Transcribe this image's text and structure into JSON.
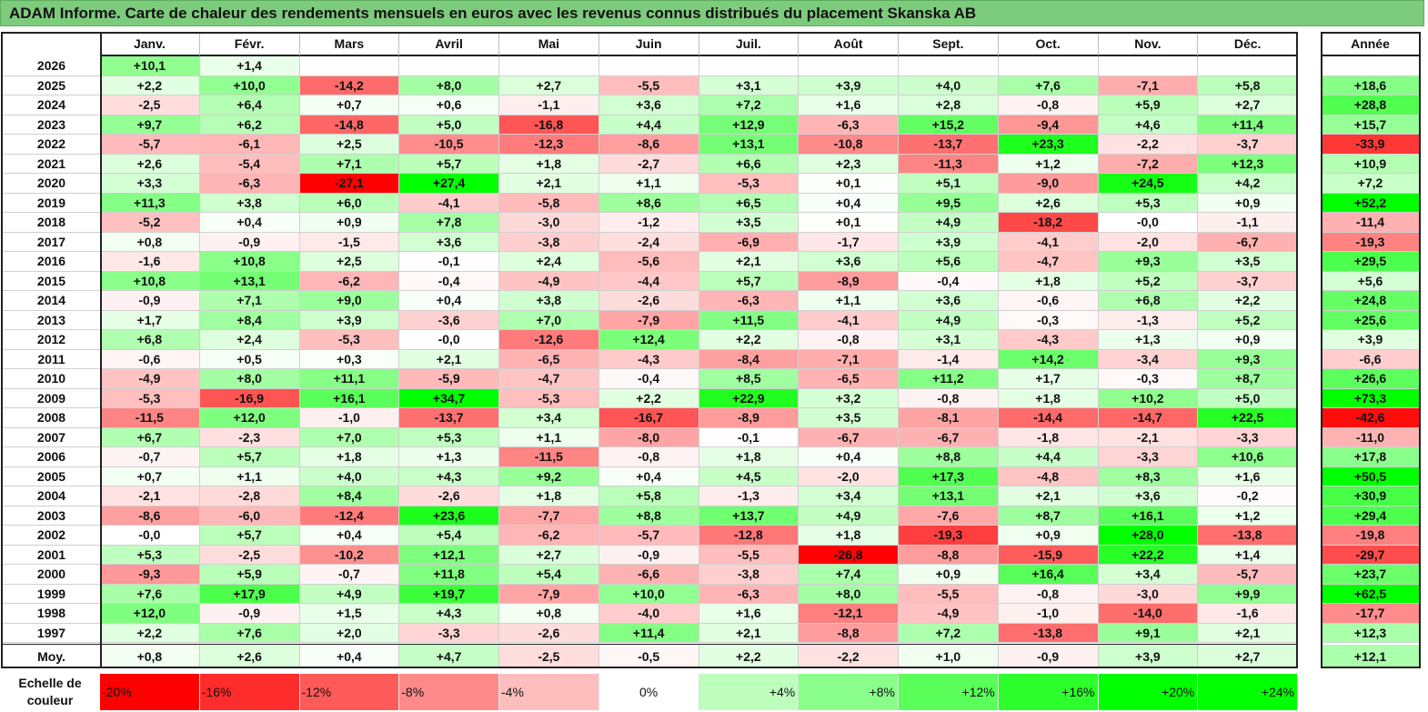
{
  "title": "ADAM Informe. Carte de chaleur des rendements mensuels en euros avec les revenus connus distribués du placement Skanska AB",
  "colors": {
    "title_bg": "#7dcb7d",
    "positive": "#00ff00",
    "negative": "#ff0000",
    "neutral": "#ffffff"
  },
  "chart_data": {
    "type": "heatmap",
    "columns": [
      "Janv.",
      "Févr.",
      "Mars",
      "Avril",
      "Mai",
      "Juin",
      "Juil.",
      "Août",
      "Sept.",
      "Oct.",
      "Nov.",
      "Déc."
    ],
    "year_header": "Année",
    "average_label": "Moy.",
    "scale_label": "Echelle de couleur",
    "rows": [
      {
        "year": "2026",
        "values": [
          "+10,1",
          "+1,4",
          "",
          "",
          "",
          "",
          "",
          "",
          "",
          "",
          "",
          ""
        ],
        "total": ""
      },
      {
        "year": "2025",
        "values": [
          "+2,2",
          "+10,0",
          "-14,2",
          "+8,0",
          "+2,7",
          "-5,5",
          "+3,1",
          "+3,9",
          "+4,0",
          "+7,6",
          "-7,1",
          "+5,8"
        ],
        "total": "+18,6"
      },
      {
        "year": "2024",
        "values": [
          "-2,5",
          "+6,4",
          "+0,7",
          "+0,6",
          "-1,1",
          "+3,6",
          "+7,2",
          "+1,6",
          "+2,8",
          "-0,8",
          "+5,9",
          "+2,7"
        ],
        "total": "+28,8"
      },
      {
        "year": "2023",
        "values": [
          "+9,7",
          "+6,2",
          "-14,8",
          "+5,0",
          "-16,8",
          "+4,4",
          "+12,9",
          "-6,3",
          "+15,2",
          "-9,4",
          "+4,6",
          "+11,4"
        ],
        "total": "+15,7"
      },
      {
        "year": "2022",
        "values": [
          "-5,7",
          "-6,1",
          "+2,5",
          "-10,5",
          "-12,3",
          "-8,6",
          "+13,1",
          "-10,8",
          "-13,7",
          "+23,3",
          "-2,2",
          "-3,7"
        ],
        "total": "-33,9"
      },
      {
        "year": "2021",
        "values": [
          "+2,6",
          "-5,4",
          "+7,1",
          "+5,7",
          "+1,8",
          "-2,7",
          "+6,6",
          "+2,3",
          "-11,3",
          "+1,2",
          "-7,2",
          "+12,3"
        ],
        "total": "+10,9"
      },
      {
        "year": "2020",
        "values": [
          "+3,3",
          "-6,3",
          "-27,1",
          "+27,4",
          "+2,1",
          "+1,1",
          "-5,3",
          "+0,1",
          "+5,1",
          "-9,0",
          "+24,5",
          "+4,2"
        ],
        "total": "+7,2"
      },
      {
        "year": "2019",
        "values": [
          "+11,3",
          "+3,8",
          "+6,0",
          "-4,1",
          "-5,8",
          "+8,6",
          "+6,5",
          "+0,4",
          "+9,5",
          "+2,6",
          "+5,3",
          "+0,9"
        ],
        "total": "+52,2"
      },
      {
        "year": "2018",
        "values": [
          "-5,2",
          "+0,4",
          "+0,9",
          "+7,8",
          "-3,0",
          "-1,2",
          "+3,5",
          "+0,1",
          "+4,9",
          "-18,2",
          "-0,0",
          "-1,1"
        ],
        "total": "-11,4"
      },
      {
        "year": "2017",
        "values": [
          "+0,8",
          "-0,9",
          "-1,5",
          "+3,6",
          "-3,8",
          "-2,4",
          "-6,9",
          "-1,7",
          "+3,9",
          "-4,1",
          "-2,0",
          "-6,7"
        ],
        "total": "-19,3"
      },
      {
        "year": "2016",
        "values": [
          "-1,6",
          "+10,8",
          "+2,5",
          "-0,1",
          "+2,4",
          "-5,6",
          "+2,1",
          "+3,6",
          "+5,6",
          "-4,7",
          "+9,3",
          "+3,5"
        ],
        "total": "+29,5"
      },
      {
        "year": "2015",
        "values": [
          "+10,8",
          "+13,1",
          "-6,2",
          "-0,4",
          "-4,9",
          "-4,4",
          "+5,7",
          "-8,9",
          "-0,4",
          "+1,8",
          "+5,2",
          "-3,7"
        ],
        "total": "+5,6"
      },
      {
        "year": "2014",
        "values": [
          "-0,9",
          "+7,1",
          "+9,0",
          "+0,4",
          "+3,8",
          "-2,6",
          "-6,3",
          "+1,1",
          "+3,6",
          "-0,6",
          "+6,8",
          "+2,2"
        ],
        "total": "+24,8"
      },
      {
        "year": "2013",
        "values": [
          "+1,7",
          "+8,4",
          "+3,9",
          "-3,6",
          "+7,0",
          "-7,9",
          "+11,5",
          "-4,1",
          "+4,9",
          "-0,3",
          "-1,3",
          "+5,2"
        ],
        "total": "+25,6"
      },
      {
        "year": "2012",
        "values": [
          "+6,8",
          "+2,4",
          "-5,3",
          "-0,0",
          "-12,6",
          "+12,4",
          "+2,2",
          "-0,8",
          "+3,1",
          "-4,3",
          "+1,3",
          "+0,9"
        ],
        "total": "+3,9"
      },
      {
        "year": "2011",
        "values": [
          "-0,6",
          "+0,5",
          "+0,3",
          "+2,1",
          "-6,5",
          "-4,3",
          "-8,4",
          "-7,1",
          "-1,4",
          "+14,2",
          "-3,4",
          "+9,3"
        ],
        "total": "-6,6"
      },
      {
        "year": "2010",
        "values": [
          "-4,9",
          "+8,0",
          "+11,1",
          "-5,9",
          "-4,7",
          "-0,4",
          "+8,5",
          "-6,5",
          "+11,2",
          "+1,7",
          "-0,3",
          "+8,7"
        ],
        "total": "+26,6"
      },
      {
        "year": "2009",
        "values": [
          "-5,3",
          "-16,9",
          "+16,1",
          "+34,7",
          "-5,3",
          "+2,2",
          "+22,9",
          "+3,2",
          "-0,8",
          "+1,8",
          "+10,2",
          "+5,0"
        ],
        "total": "+73,3"
      },
      {
        "year": "2008",
        "values": [
          "-11,5",
          "+12,0",
          "-1,0",
          "-13,7",
          "+3,4",
          "-16,7",
          "-8,9",
          "+3,5",
          "-8,1",
          "-14,4",
          "-14,7",
          "+22,5"
        ],
        "total": "-42,6"
      },
      {
        "year": "2007",
        "values": [
          "+6,7",
          "-2,3",
          "+7,0",
          "+5,3",
          "+1,1",
          "-8,0",
          "-0,1",
          "-6,7",
          "-6,7",
          "-1,8",
          "-2,1",
          "-3,3"
        ],
        "total": "-11,0"
      },
      {
        "year": "2006",
        "values": [
          "-0,7",
          "+5,7",
          "+1,8",
          "+1,3",
          "-11,5",
          "-0,8",
          "+1,8",
          "+0,4",
          "+8,8",
          "+4,4",
          "-3,3",
          "+10,6"
        ],
        "total": "+17,8"
      },
      {
        "year": "2005",
        "values": [
          "+0,7",
          "+1,1",
          "+4,0",
          "+4,3",
          "+9,2",
          "+0,4",
          "+4,5",
          "-2,0",
          "+17,3",
          "-4,8",
          "+8,3",
          "+1,6"
        ],
        "total": "+50,5"
      },
      {
        "year": "2004",
        "values": [
          "-2,1",
          "-2,8",
          "+8,4",
          "-2,6",
          "+1,8",
          "+5,8",
          "-1,3",
          "+3,4",
          "+13,1",
          "+2,1",
          "+3,6",
          "-0,2"
        ],
        "total": "+30,9"
      },
      {
        "year": "2003",
        "values": [
          "-8,6",
          "-6,0",
          "-12,4",
          "+23,6",
          "-7,7",
          "+8,8",
          "+13,7",
          "+4,9",
          "-7,6",
          "+8,7",
          "+16,1",
          "+1,2"
        ],
        "total": "+29,4"
      },
      {
        "year": "2002",
        "values": [
          "-0,0",
          "+5,7",
          "+0,4",
          "+5,4",
          "-6,2",
          "-5,7",
          "-12,8",
          "+1,8",
          "-19,3",
          "+0,9",
          "+28,0",
          "-13,8"
        ],
        "total": "-19,8"
      },
      {
        "year": "2001",
        "values": [
          "+5,3",
          "-2,5",
          "-10,2",
          "+12,1",
          "+2,7",
          "-0,9",
          "-5,5",
          "-26,8",
          "-8,8",
          "-15,9",
          "+22,2",
          "+1,4"
        ],
        "total": "-29,7"
      },
      {
        "year": "2000",
        "values": [
          "-9,3",
          "+5,9",
          "-0,7",
          "+11,8",
          "+5,4",
          "-6,6",
          "-3,8",
          "+7,4",
          "+0,9",
          "+16,4",
          "+3,4",
          "-5,7"
        ],
        "total": "+23,7"
      },
      {
        "year": "1999",
        "values": [
          "+7,6",
          "+17,9",
          "+4,9",
          "+19,7",
          "-7,9",
          "+10,0",
          "-6,3",
          "+8,0",
          "-5,5",
          "-0,8",
          "-3,0",
          "+9,9"
        ],
        "total": "+62,5"
      },
      {
        "year": "1998",
        "values": [
          "+12,0",
          "-0,9",
          "+1,5",
          "+4,3",
          "+0,8",
          "-4,0",
          "+1,6",
          "-12,1",
          "-4,9",
          "-1,0",
          "-14,0",
          "-1,6"
        ],
        "total": "-17,7"
      },
      {
        "year": "1997",
        "values": [
          "+2,2",
          "+7,6",
          "+2,0",
          "-3,3",
          "-2,6",
          "+11,4",
          "+2,1",
          "-8,8",
          "+7,2",
          "-13,8",
          "+9,1",
          "+2,1"
        ],
        "total": "+12,3"
      }
    ],
    "averages": {
      "values": [
        "+0,8",
        "+2,6",
        "+0,4",
        "+4,7",
        "-2,5",
        "-0,5",
        "+2,2",
        "-2,2",
        "+1,0",
        "-0,9",
        "+3,9",
        "+2,7"
      ],
      "total": "+12,1"
    },
    "scale": [
      "-20%",
      "-16%",
      "-12%",
      "-8%",
      "-4%",
      "0%",
      "+4%",
      "+8%",
      "+12%",
      "+16%",
      "+20%",
      "+24%"
    ]
  }
}
